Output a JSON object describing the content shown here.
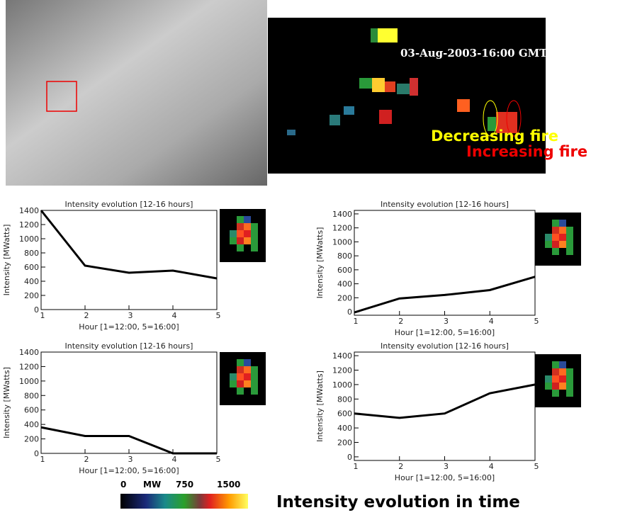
{
  "chart_data": [
    {
      "type": "line",
      "title": "Intensity evolution [12-16 hours]",
      "x_label": "Hour [1=12:00, 5=16:00]",
      "y_label": "Intensity [MWatts]",
      "x": [
        1,
        2,
        3,
        4,
        5
      ],
      "values": [
        1400,
        620,
        520,
        550,
        440
      ],
      "color": "#000000",
      "xlim": [
        1,
        5
      ],
      "xticks": [
        1,
        2,
        3,
        4,
        5
      ],
      "ylim": [
        0,
        1400
      ],
      "yticks": [
        0,
        200,
        400,
        600,
        800,
        1000,
        1200,
        1400
      ]
    },
    {
      "type": "line",
      "title": "Intensity evolution [12-16 hours]",
      "x_label": "Hour [1=12:00, 5=16:00]",
      "y_label": "Intensity [MWatts]",
      "x": [
        1,
        2,
        3,
        4,
        5
      ],
      "values": [
        -10,
        190,
        240,
        310,
        500
      ],
      "color": "#000000",
      "xlim": [
        1,
        5
      ],
      "xticks": [
        1,
        2,
        3,
        4,
        5
      ],
      "ylim": [
        -50,
        1450
      ],
      "yticks": [
        0,
        200,
        400,
        600,
        800,
        1000,
        1200,
        1400
      ]
    },
    {
      "type": "line",
      "title": "Intensity evolution [12-16 hours]",
      "x_label": "Hour [1=12:00, 5=16:00]",
      "y_label": "Intensity [MWatts]",
      "x": [
        1,
        2,
        3,
        4,
        5
      ],
      "values": [
        360,
        240,
        240,
        0,
        0
      ],
      "color": "#000000",
      "xlim": [
        1,
        5
      ],
      "xticks": [
        1,
        2,
        3,
        4,
        5
      ],
      "ylim": [
        0,
        1400
      ],
      "yticks": [
        0,
        200,
        400,
        600,
        800,
        1000,
        1200,
        1400
      ]
    },
    {
      "type": "line",
      "title": "Intensity evolution [12-16 hours]",
      "x_label": "Hour [1=12:00, 5=16:00]",
      "y_label": "Intensity [MWatts]",
      "x": [
        1,
        2,
        3,
        4,
        5
      ],
      "values": [
        600,
        540,
        600,
        880,
        1000
      ],
      "color": "#000000",
      "xlim": [
        1,
        5
      ],
      "xticks": [
        1,
        2,
        3,
        4,
        5
      ],
      "ylim": [
        -50,
        1450
      ],
      "yticks": [
        0,
        200,
        400,
        600,
        800,
        1000,
        1200,
        1400
      ]
    }
  ],
  "map": {
    "timestamp": "03-Aug-2003-16:00 GMT",
    "decreasing": "Decreasing fire",
    "increasing": "Increasing fire"
  },
  "colorbar": {
    "labels": [
      "0",
      "MW",
      "750",
      "1500"
    ]
  },
  "caption": "Intensity evolution in time"
}
